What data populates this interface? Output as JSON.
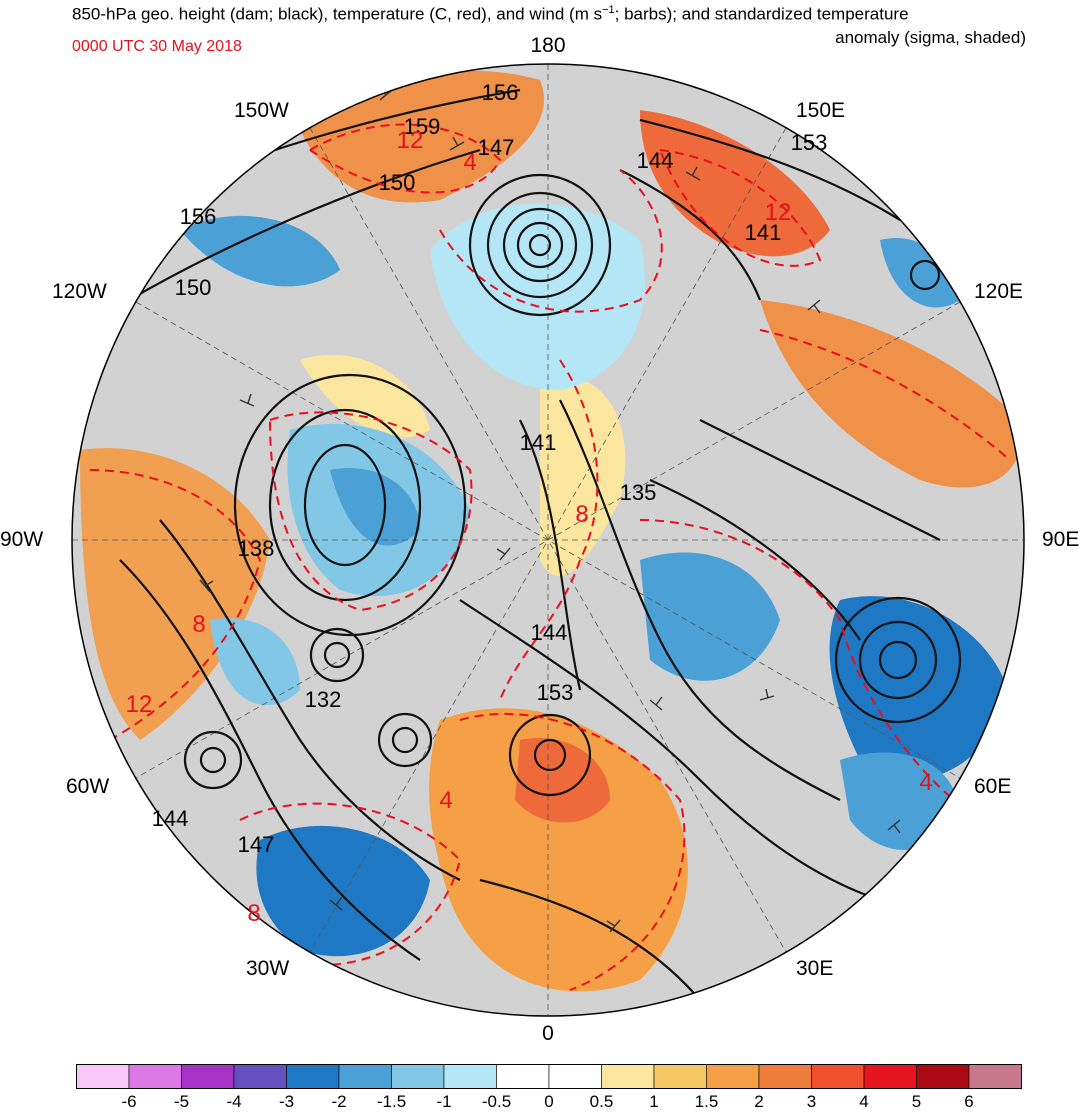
{
  "title": {
    "line1_pre": "850-hPa geo. height (dam; black), temperature (C, red), and wind (m s",
    "line1_sup": "−1",
    "line1_post": "; barbs); and standardized temperature",
    "line2": "anomaly (sigma, shaded)",
    "timestamp": "0000 UTC 30 May 2018"
  },
  "map": {
    "projection": "north-polar-stereographic",
    "longitude_labels": {
      "lon_180": "180",
      "lon_150e": "150E",
      "lon_120e": "120E",
      "lon_90e": "90E",
      "lon_60e": "60E",
      "lon_30e": "30E",
      "lon_0": "0",
      "lon_30w": "30W",
      "lon_60w": "60W",
      "lon_90w": "90W",
      "lon_120w": "120W",
      "lon_150w": "150W"
    },
    "height_contour_labels": [
      "156",
      "159",
      "147",
      "144",
      "153",
      "150",
      "156",
      "150",
      "141",
      "141",
      "135",
      "138",
      "144",
      "132",
      "153",
      "144",
      "147"
    ],
    "temperature_contour_labels": [
      "12",
      "4",
      "12",
      "8",
      "8",
      "12",
      "4",
      "4",
      "8"
    ]
  },
  "colorbar": {
    "labels": [
      "-6",
      "-5",
      "-4",
      "-3",
      "-2",
      "-1.5",
      "-1",
      "-0.5",
      "0",
      "0.5",
      "1",
      "1.5",
      "2",
      "3",
      "4",
      "5",
      "6"
    ],
    "colors": [
      "#f7c8f7",
      "#dc78e6",
      "#a832c8",
      "#6450be",
      "#1e78c3",
      "#4ba0d6",
      "#82c8e6",
      "#b4e6f5",
      "#ffffff",
      "#ffffff",
      "#fbe6a0",
      "#f5c864",
      "#f5a046",
      "#ee7d3c",
      "#f0502d",
      "#e6141e",
      "#aa0a14",
      "#c8788c"
    ]
  }
}
